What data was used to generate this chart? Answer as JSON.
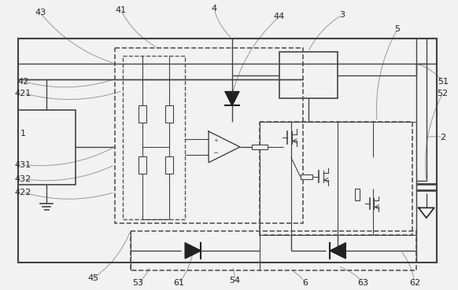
{
  "bg_color": "#f2f2f2",
  "line_color": "#444444",
  "dark_line": "#222222",
  "dashed_color": "#555555",
  "label_color": "#222222",
  "ann_color": "#999999"
}
